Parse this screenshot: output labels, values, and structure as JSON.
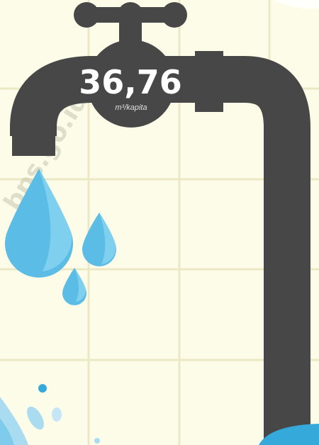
{
  "infographic": {
    "value": "36,76",
    "unit": "m³/kapita",
    "watermark": "bps.go.id"
  }
}
